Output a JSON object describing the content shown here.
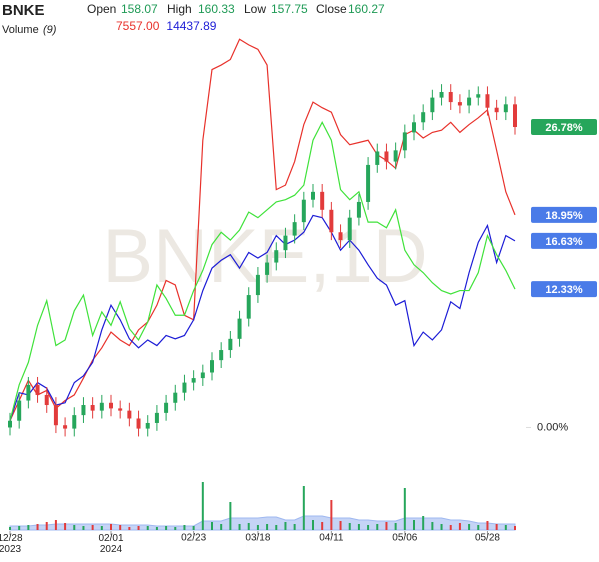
{
  "chart_data": {
    "type": "candlestick",
    "symbol": "BNKE",
    "watermark": "BNKE,1D",
    "ohlc_labels": {
      "open": "Open",
      "high": "High",
      "low": "Low",
      "close": "Close"
    },
    "ohlc_values": {
      "open": "158.07",
      "high": "160.33",
      "low": "157.75",
      "close": "160.27"
    },
    "volume_label": "Volume",
    "volume_period": "(9)",
    "categories": [
      "12/28 2023",
      null,
      null,
      null,
      null,
      null,
      null,
      null,
      null,
      null,
      null,
      "02/01 2024",
      null,
      null,
      null,
      null,
      null,
      null,
      null,
      null,
      "02/23",
      null,
      null,
      null,
      null,
      null,
      null,
      "03/18",
      null,
      null,
      null,
      null,
      null,
      null,
      null,
      "04/11",
      null,
      null,
      null,
      null,
      null,
      null,
      null,
      "05/06",
      null,
      null,
      null,
      null,
      null,
      null,
      null,
      null,
      "05/28",
      null,
      null,
      null
    ],
    "open": [
      0,
      0.6,
      2.4,
      3.8,
      2.9,
      2.0,
      0.2,
      -0.1,
      1.1,
      2.0,
      1.5,
      2.2,
      1.7,
      1.5,
      0.8,
      -0.1,
      0.4,
      1.3,
      2.2,
      3.1,
      4.0,
      4.4,
      4.9,
      6.0,
      6.9,
      7.9,
      9.7,
      11.8,
      13.6,
      14.7,
      15.8,
      17.1,
      18.3,
      20.3,
      21.0,
      19.4,
      17.4,
      16.7,
      18.7,
      20.1,
      23.4,
      24.6,
      23.7,
      24.7,
      26.3,
      27.2,
      28.1,
      29.4,
      29.9,
      29.0,
      28.7,
      29.4,
      29.7,
      28.5,
      28.1,
      28.8
    ],
    "high": [
      1.3,
      3.1,
      4.5,
      4.5,
      3.6,
      2.7,
      0.9,
      1.8,
      2.7,
      2.7,
      2.9,
      2.9,
      2.4,
      2.2,
      1.5,
      1.1,
      2.0,
      2.9,
      3.8,
      4.7,
      5.1,
      5.6,
      6.7,
      7.6,
      8.6,
      10.4,
      12.5,
      14.3,
      15.4,
      16.5,
      17.8,
      19.0,
      21.0,
      21.7,
      21.7,
      20.1,
      18.1,
      19.4,
      20.8,
      24.1,
      25.3,
      25.3,
      25.4,
      27.0,
      27.9,
      28.8,
      30.1,
      30.6,
      30.6,
      29.7,
      30.1,
      30.4,
      30.4,
      29.2,
      29.5,
      29.5
    ],
    "low": [
      -0.7,
      -0.1,
      1.7,
      2.2,
      1.3,
      -0.5,
      -0.8,
      -0.8,
      0.4,
      0.8,
      0.8,
      1.0,
      0.8,
      0.1,
      -0.8,
      -0.8,
      -0.3,
      0.6,
      1.5,
      2.4,
      3.3,
      3.7,
      4.2,
      5.3,
      6.2,
      7.2,
      9.0,
      11.1,
      12.9,
      14.0,
      15.1,
      16.4,
      17.6,
      19.6,
      18.7,
      16.7,
      16.0,
      16.0,
      18.0,
      19.4,
      22.7,
      23.0,
      23.0,
      24.0,
      25.6,
      26.5,
      27.4,
      28.7,
      28.3,
      28.0,
      28.0,
      28.7,
      27.8,
      27.4,
      27.4,
      26.1
    ],
    "close": [
      0.6,
      2.4,
      3.8,
      2.9,
      2.0,
      0.2,
      -0.1,
      1.1,
      2.0,
      1.5,
      2.2,
      1.7,
      1.5,
      0.8,
      -0.1,
      0.4,
      1.3,
      2.2,
      3.1,
      4.0,
      4.4,
      4.9,
      6.0,
      6.9,
      7.9,
      9.7,
      11.8,
      13.6,
      14.7,
      15.8,
      17.1,
      18.3,
      20.3,
      21.0,
      19.4,
      17.4,
      16.7,
      18.7,
      20.1,
      23.4,
      24.6,
      23.7,
      24.7,
      26.3,
      27.2,
      28.1,
      29.4,
      29.9,
      29.0,
      28.7,
      29.4,
      29.7,
      28.5,
      28.1,
      28.8,
      26.78
    ],
    "close_label": "26.78%",
    "up_color": "#26a65b",
    "down_color": "#e23b3b",
    "series": [
      {
        "name": "7557.00",
        "color": "#e8312b",
        "value_label": "18.95%",
        "values": [
          0.6,
          2.4,
          4.2,
          2.9,
          3.3,
          1.7,
          2.4,
          2.9,
          4.4,
          6.0,
          7.1,
          8.5,
          7.8,
          7.3,
          8.7,
          9.4,
          10.9,
          13.1,
          12.7,
          10.0,
          9.6,
          25.6,
          31.9,
          32.3,
          32.8,
          34.6,
          34.1,
          33.7,
          32.3,
          21.2,
          21.6,
          23.7,
          27.0,
          29.0,
          28.5,
          28.1,
          26.1,
          25.2,
          25.4,
          25.6,
          24.3,
          23.8,
          23.1,
          26.1,
          26.5,
          25.8,
          26.3,
          26.5,
          27.2,
          26.3,
          27.0,
          27.6,
          28.3,
          24.7,
          21.0,
          18.95
        ]
      },
      {
        "name": "14437.89",
        "color": "#1c1cd6",
        "value_label": "16.63%",
        "values": [
          0.6,
          3.1,
          2.9,
          4.0,
          3.5,
          2.0,
          2.2,
          4.0,
          4.6,
          5.8,
          8.7,
          10.9,
          9.6,
          7.9,
          7.1,
          7.8,
          7.3,
          8.2,
          7.9,
          8.2,
          9.6,
          12.2,
          14.2,
          14.9,
          15.4,
          14.2,
          15.6,
          15.1,
          15.6,
          17.1,
          16.3,
          16.7,
          17.4,
          18.9,
          18.7,
          17.4,
          15.8,
          16.7,
          15.8,
          14.5,
          13.3,
          12.7,
          10.9,
          11.3,
          7.3,
          8.5,
          7.8,
          8.7,
          11.2,
          10.6,
          13.8,
          16.5,
          18.0,
          14.7,
          17.1,
          16.63
        ]
      },
      {
        "color": "#3fe23a",
        "value_label": "12.33%",
        "values": [
          0.6,
          3.8,
          5.8,
          9.1,
          11.3,
          7.3,
          7.8,
          10.4,
          11.8,
          8.2,
          10.3,
          9.1,
          11.2,
          8.8,
          7.8,
          9.4,
          12.7,
          11.5,
          10.0,
          10.0,
          12.2,
          14.0,
          16.3,
          17.4,
          16.7,
          17.6,
          19.2,
          18.7,
          19.4,
          20.1,
          20.3,
          20.7,
          21.6,
          25.6,
          27.2,
          25.6,
          21.2,
          20.3,
          21.0,
          18.3,
          18.3,
          17.8,
          19.4,
          15.8,
          14.5,
          13.8,
          12.9,
          12.2,
          11.9,
          12.2,
          12.2,
          13.8,
          17.1,
          15.4,
          14.0,
          12.33
        ]
      }
    ],
    "label_box_color": "#4a7be8",
    "ylim": [
      -2.9,
      38.1
    ],
    "yticks": [
      {
        "value": 0,
        "label": "0.00%"
      }
    ],
    "grid": false,
    "volume": [
      3,
      4,
      5,
      6,
      8,
      10,
      7,
      5,
      4,
      5,
      4,
      6,
      5,
      3,
      4,
      4,
      3,
      4,
      3,
      5,
      4,
      48,
      8,
      6,
      28,
      6,
      7,
      5,
      6,
      5,
      8,
      6,
      44,
      10,
      8,
      30,
      9,
      7,
      6,
      5,
      6,
      8,
      7,
      42,
      10,
      14,
      8,
      6,
      5,
      7,
      6,
      5,
      9,
      6,
      5,
      4
    ],
    "volume_ma": [
      4,
      4,
      4,
      5,
      5,
      6,
      6,
      6,
      6,
      6,
      6,
      6,
      5,
      5,
      5,
      5,
      4,
      4,
      4,
      4,
      4,
      9,
      9,
      9,
      12,
      12,
      12,
      12,
      13,
      13,
      10,
      10,
      14,
      14,
      14,
      12,
      12,
      12,
      10,
      10,
      9,
      9,
      9,
      12,
      12,
      12,
      12,
      12,
      10,
      10,
      9,
      7,
      7,
      6,
      6,
      6
    ],
    "volume_ylim": [
      0,
      60
    ],
    "volume_ma_color": "#9fb8f0"
  }
}
